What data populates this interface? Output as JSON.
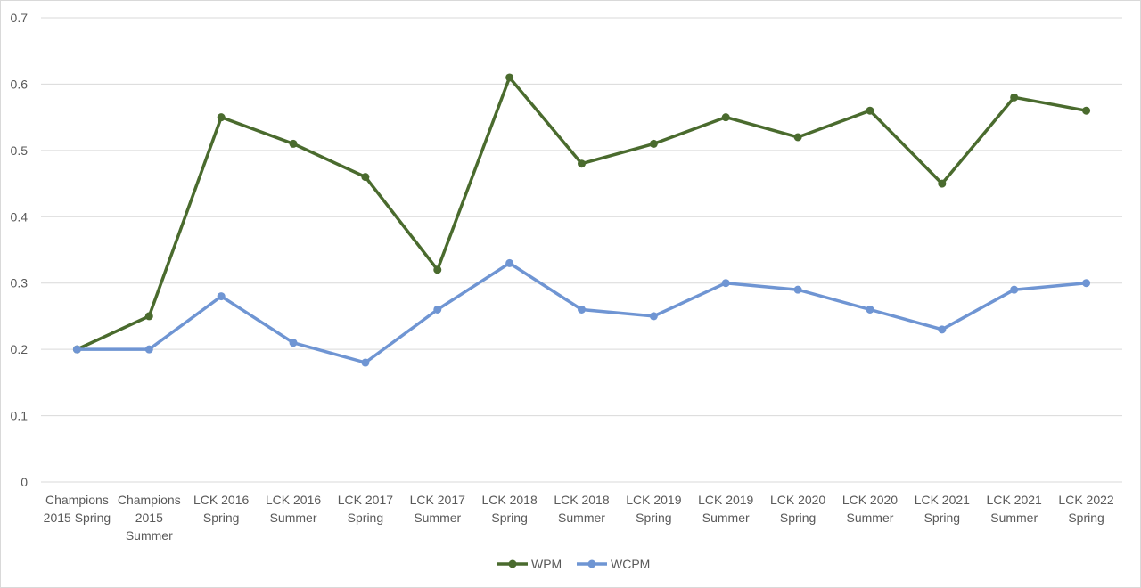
{
  "chart_data": {
    "type": "line",
    "categories": [
      "Champions 2015 Spring",
      "Champions 2015 Summer",
      "LCK 2016 Spring",
      "LCK 2016 Summer",
      "LCK 2017 Spring",
      "LCK 2017 Summer",
      "LCK 2018 Spring",
      "LCK 2018 Summer",
      "LCK 2019 Spring",
      "LCK 2019 Summer",
      "LCK 2020 Spring",
      "LCK 2020 Summer",
      "LCK 2021 Spring",
      "LCK 2021 Summer",
      "LCK 2022 Spring"
    ],
    "category_lines": [
      [
        "Champions",
        "2015 Spring"
      ],
      [
        "Champions",
        "2015",
        "Summer"
      ],
      [
        "LCK 2016",
        "Spring"
      ],
      [
        "LCK 2016",
        "Summer"
      ],
      [
        "LCK 2017",
        "Spring"
      ],
      [
        "LCK 2017",
        "Summer"
      ],
      [
        "LCK 2018",
        "Spring"
      ],
      [
        "LCK 2018",
        "Summer"
      ],
      [
        "LCK 2019",
        "Spring"
      ],
      [
        "LCK 2019",
        "Summer"
      ],
      [
        "LCK 2020",
        "Spring"
      ],
      [
        "LCK 2020",
        "Summer"
      ],
      [
        "LCK 2021",
        "Spring"
      ],
      [
        "LCK 2021",
        "Summer"
      ],
      [
        "LCK 2022",
        "Spring"
      ]
    ],
    "series": [
      {
        "name": "WPM",
        "color": "#4a6b2e",
        "values": [
          0.2,
          0.25,
          0.55,
          0.51,
          0.46,
          0.32,
          0.61,
          0.48,
          0.51,
          0.55,
          0.52,
          0.56,
          0.45,
          0.58,
          0.56
        ]
      },
      {
        "name": "WCPM",
        "color": "#6f95d3",
        "values": [
          0.2,
          0.2,
          0.28,
          0.21,
          0.18,
          0.26,
          0.33,
          0.26,
          0.25,
          0.3,
          0.29,
          0.26,
          0.23,
          0.29,
          0.3
        ]
      }
    ],
    "y_ticks": [
      "0",
      "0.1",
      "0.2",
      "0.3",
      "0.4",
      "0.5",
      "0.6",
      "0.7"
    ],
    "ylim": [
      0,
      0.7
    ],
    "grid": true,
    "legend_position": "bottom"
  }
}
